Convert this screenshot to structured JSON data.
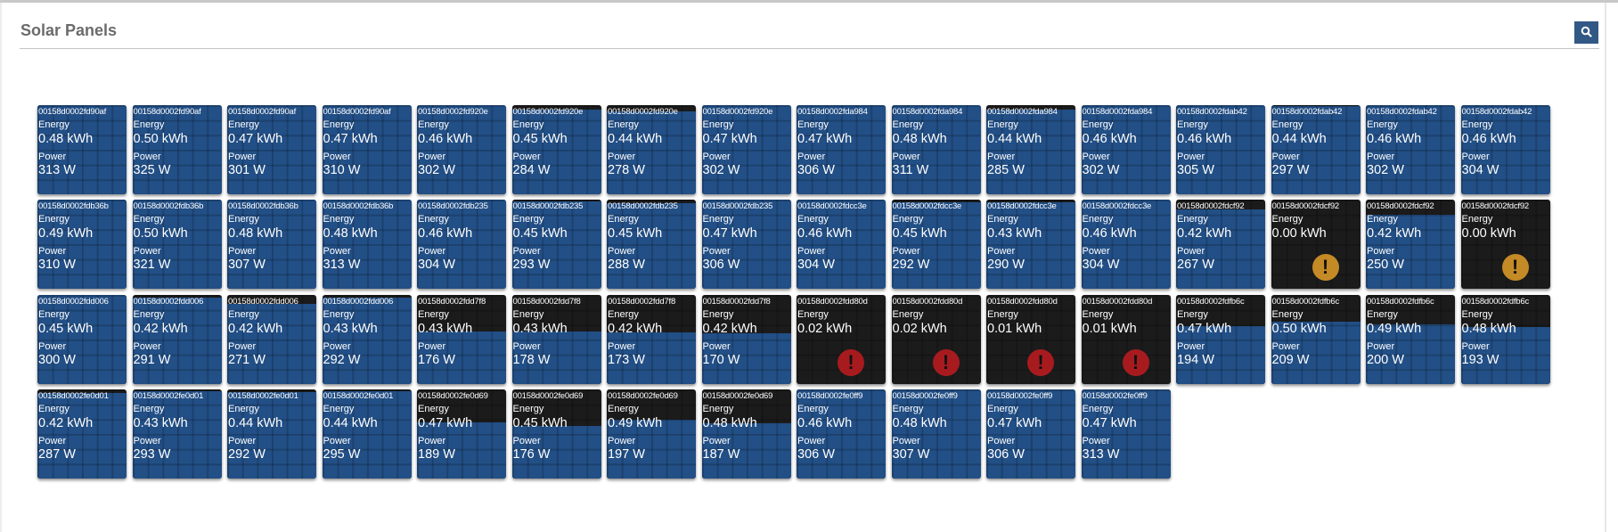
{
  "header": {
    "title": "Solar Panels",
    "search_icon": "search-icon"
  },
  "labels": {
    "energy": "Energy",
    "power": "Power"
  },
  "colors": {
    "panel_blue": "#224f86",
    "panel_off": "#1b1b1b",
    "warning": "#c48a26",
    "error": "#a71b1f",
    "search_button": "#325985"
  },
  "panels": [
    [
      {
        "id": "00158d0002fd90af",
        "energy": "0.48 kWh",
        "power": "313 W",
        "level": 1.0,
        "status": "ok"
      },
      {
        "id": "00158d0002fd90af",
        "energy": "0.50 kWh",
        "power": "325 W",
        "level": 1.0,
        "status": "ok"
      },
      {
        "id": "00158d0002fd90af",
        "energy": "0.47 kWh",
        "power": "301 W",
        "level": 1.0,
        "status": "ok"
      },
      {
        "id": "00158d0002fd90af",
        "energy": "0.47 kWh",
        "power": "310 W",
        "level": 1.0,
        "status": "ok"
      },
      {
        "id": "00158d0002fd920e",
        "energy": "0.46 kWh",
        "power": "302 W",
        "level": 1.0,
        "status": "ok"
      },
      {
        "id": "00158d0002fd920e",
        "energy": "0.45 kWh",
        "power": "284 W",
        "level": 0.95,
        "status": "ok"
      },
      {
        "id": "00158d0002fd920e",
        "energy": "0.44 kWh",
        "power": "278 W",
        "level": 0.93,
        "status": "ok"
      },
      {
        "id": "00158d0002fd920e",
        "energy": "0.47 kWh",
        "power": "302 W",
        "level": 1.0,
        "status": "ok"
      },
      {
        "id": "00158d0002fda984",
        "energy": "0.47 kWh",
        "power": "306 W",
        "level": 1.0,
        "status": "ok"
      },
      {
        "id": "00158d0002fda984",
        "energy": "0.48 kWh",
        "power": "311 W",
        "level": 1.0,
        "status": "ok"
      },
      {
        "id": "00158d0002fda984",
        "energy": "0.44 kWh",
        "power": "285 W",
        "level": 0.95,
        "status": "ok"
      },
      {
        "id": "00158d0002fda984",
        "energy": "0.46 kWh",
        "power": "302 W",
        "level": 1.0,
        "status": "ok"
      },
      {
        "id": "00158d0002fdab42",
        "energy": "0.46 kWh",
        "power": "305 W",
        "level": 1.0,
        "status": "ok"
      },
      {
        "id": "00158d0002fdab42",
        "energy": "0.44 kWh",
        "power": "297 W",
        "level": 0.99,
        "status": "ok"
      },
      {
        "id": "00158d0002fdab42",
        "energy": "0.46 kWh",
        "power": "302 W",
        "level": 1.0,
        "status": "ok"
      },
      {
        "id": "00158d0002fdab42",
        "energy": "0.46 kWh",
        "power": "304 W",
        "level": 1.0,
        "status": "ok"
      }
    ],
    [
      {
        "id": "00158d0002fdb36b",
        "energy": "0.49 kWh",
        "power": "310 W",
        "level": 1.0,
        "status": "ok"
      },
      {
        "id": "00158d0002fdb36b",
        "energy": "0.50 kWh",
        "power": "321 W",
        "level": 1.0,
        "status": "ok"
      },
      {
        "id": "00158d0002fdb36b",
        "energy": "0.48 kWh",
        "power": "307 W",
        "level": 1.0,
        "status": "ok"
      },
      {
        "id": "00158d0002fdb36b",
        "energy": "0.48 kWh",
        "power": "313 W",
        "level": 1.0,
        "status": "ok"
      },
      {
        "id": "00158d0002fdb235",
        "energy": "0.46 kWh",
        "power": "304 W",
        "level": 1.0,
        "status": "ok"
      },
      {
        "id": "00158d0002fdb235",
        "energy": "0.45 kWh",
        "power": "293 W",
        "level": 0.98,
        "status": "ok"
      },
      {
        "id": "00158d0002fdb235",
        "energy": "0.45 kWh",
        "power": "288 W",
        "level": 0.96,
        "status": "ok"
      },
      {
        "id": "00158d0002fdb235",
        "energy": "0.47 kWh",
        "power": "306 W",
        "level": 1.0,
        "status": "ok"
      },
      {
        "id": "00158d0002fdcc3e",
        "energy": "0.46 kWh",
        "power": "304 W",
        "level": 1.0,
        "status": "ok"
      },
      {
        "id": "00158d0002fdcc3e",
        "energy": "0.45 kWh",
        "power": "292 W",
        "level": 0.97,
        "status": "ok"
      },
      {
        "id": "00158d0002fdcc3e",
        "energy": "0.43 kWh",
        "power": "290 W",
        "level": 0.97,
        "status": "ok"
      },
      {
        "id": "00158d0002fdcc3e",
        "energy": "0.46 kWh",
        "power": "304 W",
        "level": 1.0,
        "status": "ok"
      },
      {
        "id": "00158d0002fdcf92",
        "energy": "0.42 kWh",
        "power": "267 W",
        "level": 0.89,
        "status": "ok"
      },
      {
        "id": "00158d0002fdcf92",
        "energy": "0.00 kWh",
        "power": "",
        "level": 0,
        "status": "warning"
      },
      {
        "id": "00158d0002fdcf92",
        "energy": "0.42 kWh",
        "power": "250 W",
        "level": 0.83,
        "status": "ok"
      },
      {
        "id": "00158d0002fdcf92",
        "energy": "0.00 kWh",
        "power": "",
        "level": 0,
        "status": "warning"
      }
    ],
    [
      {
        "id": "00158d0002fdd006",
        "energy": "0.45 kWh",
        "power": "300 W",
        "level": 1.0,
        "status": "ok"
      },
      {
        "id": "00158d0002fdd006",
        "energy": "0.42 kWh",
        "power": "291 W",
        "level": 0.97,
        "status": "ok"
      },
      {
        "id": "00158d0002fdd006",
        "energy": "0.42 kWh",
        "power": "271 W",
        "level": 0.9,
        "status": "ok"
      },
      {
        "id": "00158d0002fdd006",
        "energy": "0.43 kWh",
        "power": "292 W",
        "level": 0.97,
        "status": "ok"
      },
      {
        "id": "00158d0002fdd7f8",
        "energy": "0.43 kWh",
        "power": "176 W",
        "level": 0.59,
        "status": "ok"
      },
      {
        "id": "00158d0002fdd7f8",
        "energy": "0.43 kWh",
        "power": "178 W",
        "level": 0.59,
        "status": "ok"
      },
      {
        "id": "00158d0002fdd7f8",
        "energy": "0.42 kWh",
        "power": "173 W",
        "level": 0.58,
        "status": "ok"
      },
      {
        "id": "00158d0002fdd7f8",
        "energy": "0.42 kWh",
        "power": "170 W",
        "level": 0.57,
        "status": "ok"
      },
      {
        "id": "00158d0002fdd80d",
        "energy": "0.02 kWh",
        "power": "",
        "level": 0,
        "status": "error"
      },
      {
        "id": "00158d0002fdd80d",
        "energy": "0.02 kWh",
        "power": "",
        "level": 0,
        "status": "error"
      },
      {
        "id": "00158d0002fdd80d",
        "energy": "0.01 kWh",
        "power": "",
        "level": 0,
        "status": "error"
      },
      {
        "id": "00158d0002fdd80d",
        "energy": "0.01 kWh",
        "power": "",
        "level": 0,
        "status": "error"
      },
      {
        "id": "00158d0002fdfb6c",
        "energy": "0.47 kWh",
        "power": "194 W",
        "level": 0.65,
        "status": "ok"
      },
      {
        "id": "00158d0002fdfb6c",
        "energy": "0.50 kWh",
        "power": "209 W",
        "level": 0.7,
        "status": "ok"
      },
      {
        "id": "00158d0002fdfb6c",
        "energy": "0.49 kWh",
        "power": "200 W",
        "level": 0.67,
        "status": "ok"
      },
      {
        "id": "00158d0002fdfb6c",
        "energy": "0.48 kWh",
        "power": "193 W",
        "level": 0.64,
        "status": "ok"
      }
    ],
    [
      {
        "id": "00158d0002fe0d01",
        "energy": "0.42 kWh",
        "power": "287 W",
        "level": 0.96,
        "status": "ok"
      },
      {
        "id": "00158d0002fe0d01",
        "energy": "0.43 kWh",
        "power": "293 W",
        "level": 0.98,
        "status": "ok"
      },
      {
        "id": "00158d0002fe0d01",
        "energy": "0.44 kWh",
        "power": "292 W",
        "level": 0.97,
        "status": "ok"
      },
      {
        "id": "00158d0002fe0d01",
        "energy": "0.44 kWh",
        "power": "295 W",
        "level": 0.98,
        "status": "ok"
      },
      {
        "id": "00158d0002fe0d69",
        "energy": "0.47 kWh",
        "power": "189 W",
        "level": 0.63,
        "status": "ok"
      },
      {
        "id": "00158d0002fe0d69",
        "energy": "0.45 kWh",
        "power": "176 W",
        "level": 0.59,
        "status": "ok"
      },
      {
        "id": "00158d0002fe0d69",
        "energy": "0.49 kWh",
        "power": "197 W",
        "level": 0.66,
        "status": "ok"
      },
      {
        "id": "00158d0002fe0d69",
        "energy": "0.48 kWh",
        "power": "187 W",
        "level": 0.62,
        "status": "ok"
      },
      {
        "id": "00158d0002fe0ff9",
        "energy": "0.46 kWh",
        "power": "306 W",
        "level": 1.0,
        "status": "ok"
      },
      {
        "id": "00158d0002fe0ff9",
        "energy": "0.48 kWh",
        "power": "307 W",
        "level": 1.0,
        "status": "ok"
      },
      {
        "id": "00158d0002fe0ff9",
        "energy": "0.47 kWh",
        "power": "306 W",
        "level": 1.0,
        "status": "ok"
      },
      {
        "id": "00158d0002fe0ff9",
        "energy": "0.47 kWh",
        "power": "313 W",
        "level": 1.0,
        "status": "ok"
      }
    ]
  ]
}
